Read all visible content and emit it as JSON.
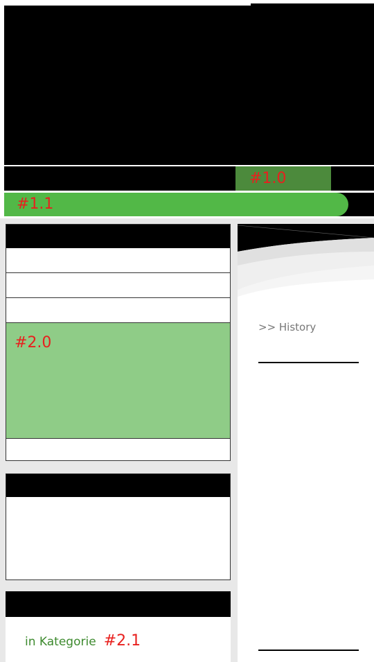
{
  "header": {
    "banner_label": "#1.0",
    "nav_label": "#1.1"
  },
  "sidebar": {
    "menu_label": "#2.0",
    "category_text": "in Kategorie",
    "category_label": "#2.1"
  },
  "content": {
    "breadcrumb": ">> History"
  }
}
